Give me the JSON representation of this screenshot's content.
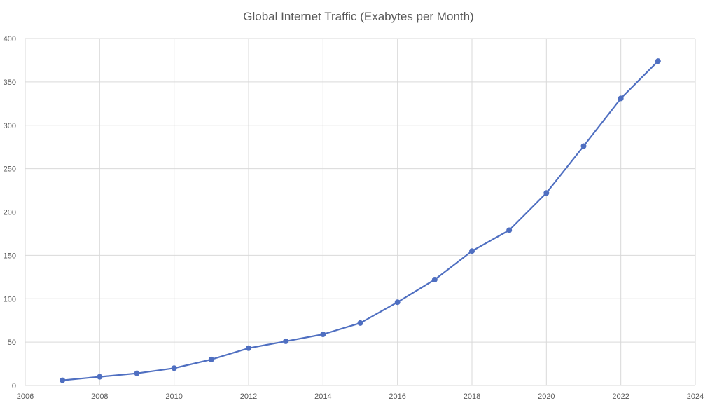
{
  "chart_data": {
    "type": "line",
    "title": "Global Internet Traffic (Exabytes per Month)",
    "xlabel": "",
    "ylabel": "",
    "xlim": [
      2006,
      2024
    ],
    "ylim": [
      0,
      400
    ],
    "x_ticks": [
      2006,
      2008,
      2010,
      2012,
      2014,
      2016,
      2018,
      2020,
      2022,
      2024
    ],
    "y_ticks": [
      0,
      50,
      100,
      150,
      200,
      250,
      300,
      350,
      400
    ],
    "grid": true,
    "legend": "none",
    "series": [
      {
        "color": "#4f6fc1",
        "x": [
          2007,
          2008,
          2009,
          2010,
          2011,
          2012,
          2013,
          2014,
          2015,
          2016,
          2017,
          2018,
          2019,
          2020,
          2021,
          2022,
          2023
        ],
        "y": [
          6,
          10,
          14,
          20,
          30,
          43,
          51,
          59,
          72,
          96,
          122,
          155,
          179,
          222,
          276,
          331,
          374
        ]
      }
    ]
  }
}
